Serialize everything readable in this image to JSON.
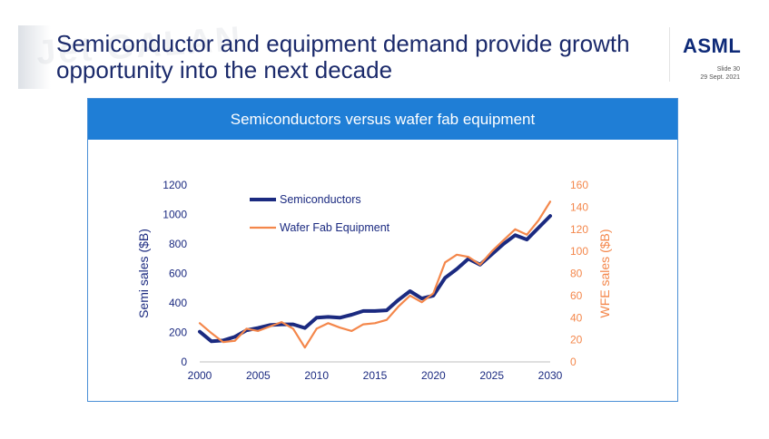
{
  "slide": {
    "title_line1": "Semiconductor and equipment demand provide growth",
    "title_line2": "opportunity into the next decade",
    "logo_text": "ASML",
    "slide_number": "Slide 30",
    "date": "29 Sept. 2021",
    "watermark": "Jet GALAN"
  },
  "colors": {
    "navy": "#1b2a80",
    "orange": "#f4874b",
    "header_blue": "#1f7ed6"
  },
  "chart_data": {
    "type": "line",
    "title": "Semiconductors versus wafer fab equipment",
    "xlabel": "",
    "ylabel_left": "Semi sales ($B)",
    "ylabel_right": "WFE sales ($B)",
    "xlim": [
      2000,
      2030
    ],
    "ylim_left": [
      0,
      1200
    ],
    "ylim_right": [
      0,
      160
    ],
    "x_ticks": [
      2000,
      2005,
      2010,
      2015,
      2020,
      2025,
      2030
    ],
    "y_ticks_left": [
      0,
      200,
      400,
      600,
      800,
      1000,
      1200
    ],
    "y_ticks_right": [
      0,
      20,
      40,
      60,
      80,
      100,
      120,
      140,
      160
    ],
    "legend": "top-left",
    "series": [
      {
        "name": "Semiconductors",
        "axis": "left",
        "color": "#1b2a80",
        "x": [
          2000,
          2001,
          2002,
          2003,
          2004,
          2005,
          2006,
          2007,
          2008,
          2009,
          2010,
          2011,
          2012,
          2013,
          2014,
          2015,
          2016,
          2017,
          2018,
          2019,
          2020,
          2021,
          2022,
          2023,
          2024,
          2025,
          2026,
          2027,
          2028,
          2029,
          2030
        ],
        "values": [
          205,
          140,
          145,
          170,
          215,
          230,
          250,
          255,
          255,
          230,
          300,
          305,
          300,
          320,
          345,
          345,
          350,
          420,
          480,
          430,
          450,
          570,
          630,
          700,
          660,
          730,
          800,
          860,
          830,
          910,
          990
        ]
      },
      {
        "name": "Wafer Fab Equipment",
        "axis": "right",
        "color": "#f4874b",
        "x": [
          2000,
          2001,
          2002,
          2003,
          2004,
          2005,
          2006,
          2007,
          2008,
          2009,
          2010,
          2011,
          2012,
          2013,
          2014,
          2015,
          2016,
          2017,
          2018,
          2019,
          2020,
          2021,
          2022,
          2023,
          2024,
          2025,
          2026,
          2027,
          2028,
          2029,
          2030
        ],
        "values": [
          35,
          26,
          18,
          19,
          30,
          28,
          32,
          36,
          30,
          13,
          30,
          35,
          31,
          28,
          34,
          35,
          38,
          50,
          60,
          54,
          62,
          90,
          97,
          95,
          88,
          100,
          110,
          120,
          115,
          128,
          145
        ]
      }
    ]
  }
}
